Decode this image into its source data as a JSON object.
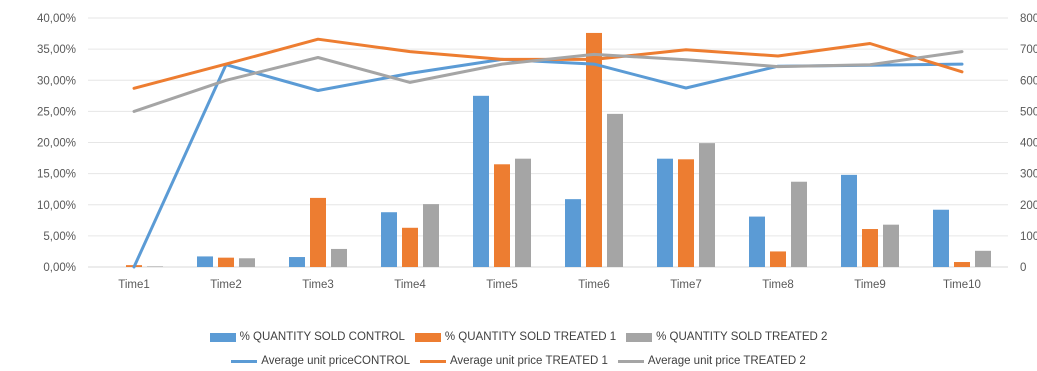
{
  "chart_data": {
    "type": "bar",
    "title": "",
    "xlabel": "",
    "ylabel": "",
    "categories": [
      "Time1",
      "Time2",
      "Time3",
      "Time4",
      "Time5",
      "Time6",
      "Time7",
      "Time8",
      "Time9",
      "Time10"
    ],
    "y_left": {
      "ticks": [
        "0,00%",
        "5,00%",
        "10,00%",
        "15,00%",
        "20,00%",
        "25,00%",
        "30,00%",
        "35,00%",
        "40,00%"
      ],
      "ylim": [
        0,
        40
      ]
    },
    "y_right": {
      "ticks": [
        "0",
        "100",
        "200",
        "300",
        "400",
        "500",
        "600",
        "700",
        "800"
      ],
      "ylim": [
        0,
        800
      ]
    },
    "grid": true,
    "legend_position": "bottom",
    "bar_series": [
      {
        "name": "% QUANTITY SOLD  CONTROL",
        "color": "#5b9bd5",
        "values": [
          0.0,
          1.7,
          1.6,
          8.8,
          27.5,
          10.9,
          17.4,
          8.1,
          14.8,
          9.2
        ]
      },
      {
        "name": "% QUANTITY SOLD TREATED 1",
        "color": "#ed7d31",
        "values": [
          0.3,
          1.5,
          11.1,
          6.3,
          16.5,
          37.6,
          17.3,
          2.5,
          6.1,
          0.8
        ]
      },
      {
        "name": "% QUANTITY SOLD  TREATED 2",
        "color": "#a5a5a5",
        "values": [
          0.1,
          1.4,
          2.9,
          10.1,
          17.4,
          24.6,
          19.9,
          13.7,
          6.8,
          2.6
        ]
      }
    ],
    "line_series": [
      {
        "name": "Average unit priceCONTROL",
        "color": "#5b9bd5",
        "values": [
          0,
          650,
          567,
          622,
          667,
          652,
          575,
          645,
          648,
          652
        ]
      },
      {
        "name": "Average unit price TREATED 1",
        "color": "#ed7d31",
        "values": [
          574,
          652,
          732,
          692,
          667,
          667,
          698,
          678,
          718,
          627
        ]
      },
      {
        "name": "Average unit price TREATED 2",
        "color": "#a5a5a5",
        "values": [
          500,
          600,
          673,
          593,
          652,
          683,
          666,
          644,
          650,
          692
        ]
      }
    ]
  }
}
